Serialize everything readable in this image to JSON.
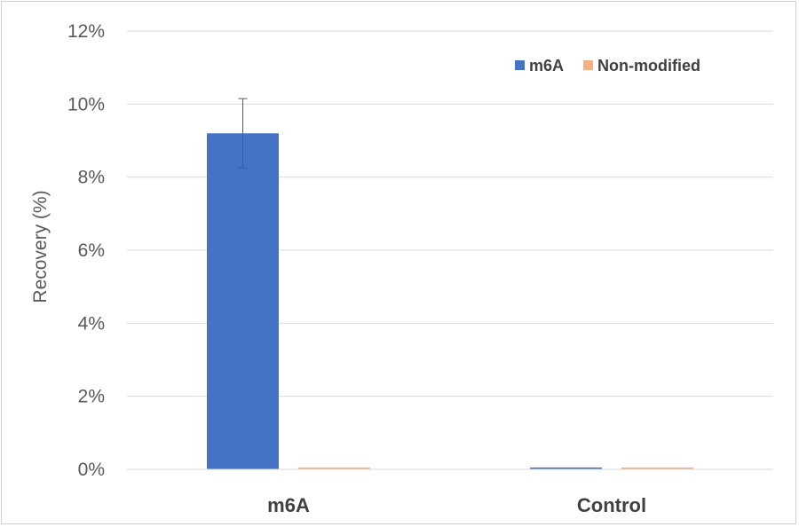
{
  "chart_data": {
    "type": "bar",
    "categories": [
      "m6A",
      "Control"
    ],
    "series": [
      {
        "name": "m6A",
        "values": [
          9.2,
          0.05
        ],
        "error": [
          0.95,
          0
        ],
        "color": "#4472c4"
      },
      {
        "name": "Non-modified",
        "values": [
          0.05,
          0.05
        ],
        "error": [
          0,
          0
        ],
        "color": "#f4b183"
      }
    ],
    "title": "",
    "xlabel": "",
    "ylabel": "Recovery (%)",
    "ylim": [
      0,
      12
    ],
    "yticks": [
      0,
      2,
      4,
      6,
      8,
      10,
      12
    ],
    "ytick_labels": [
      "0%",
      "2%",
      "4%",
      "6%",
      "8%",
      "10%",
      "12%"
    ],
    "grid": true,
    "legend_position": "top-right"
  }
}
